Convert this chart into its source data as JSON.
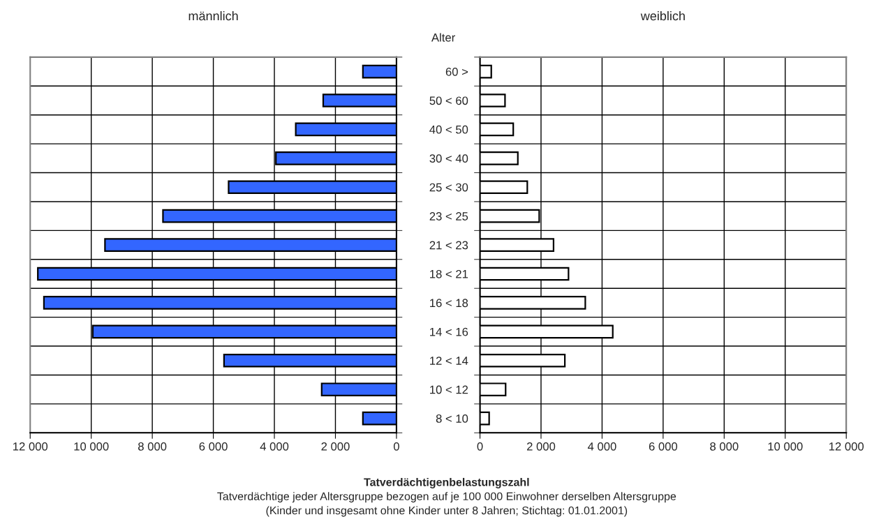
{
  "chart_data": [
    {
      "type": "bar",
      "orientation": "horizontal",
      "title": "männlich",
      "categories": [
        null,
        null,
        null,
        null,
        null,
        null,
        null,
        null,
        null,
        null,
        null,
        null,
        null
      ],
      "series": [
        {
          "color": "#3366ff",
          "values": [
            1100,
            2400,
            3300,
            3950,
            5500,
            7650,
            9550,
            11750,
            11550,
            9950,
            5650,
            2450,
            1100
          ]
        }
      ],
      "xlim": [
        12000,
        0
      ],
      "xticks": [
        {
          "value": 12000,
          "label": "12 000"
        },
        {
          "value": 10000,
          "label": "10 000"
        },
        {
          "value": 8000,
          "label": "8 000"
        },
        {
          "value": 6000,
          "label": "6 000"
        },
        {
          "value": 4000,
          "label": "4 000"
        },
        {
          "value": 2000,
          "label": "2 000"
        },
        0
      ],
      "grid": true,
      "tick_labels": "x"
    },
    {
      "type": "bar",
      "orientation": "horizontal",
      "title": "weiblich",
      "ylabel": "Alter",
      "categories": [
        "60 >",
        "50 < 60",
        "40 < 50",
        "30 < 40",
        "25 < 30",
        "23 < 25",
        "21 < 23",
        "18 < 21",
        "16 < 18",
        "14 < 16",
        "12 < 14",
        "10 < 12",
        "8 < 10"
      ],
      "series": [
        {
          "color": "#ffffff",
          "values": [
            370,
            820,
            1090,
            1240,
            1550,
            1940,
            2410,
            2900,
            3450,
            4350,
            2780,
            840,
            300
          ]
        }
      ],
      "xlim": [
        0,
        12000
      ],
      "xticks": [
        0,
        {
          "value": 2000,
          "label": "2 000"
        },
        {
          "value": 4000,
          "label": "4 000"
        },
        {
          "value": 6000,
          "label": "6 000"
        },
        {
          "value": 8000,
          "label": "8 000"
        },
        {
          "value": 10000,
          "label": "10 000"
        },
        {
          "value": 12000,
          "label": "12 000"
        }
      ],
      "grid": true,
      "annotations": [
        "Tatverdächtigenbelastungszahl",
        "Tatverdächtige jeder Altersgruppe bezogen auf je 100 000 Einwohner derselben Altersgruppe",
        "(Kinder und insgesamt ohne Kinder unter 8 Jahren; Stichtag: 01.01.2001)"
      ]
    }
  ]
}
